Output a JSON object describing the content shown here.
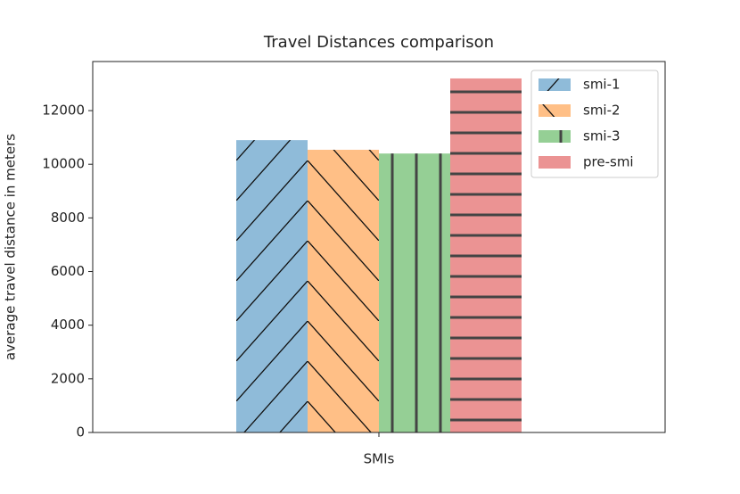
{
  "chart_data": {
    "type": "bar",
    "title": "Travel Distances comparison",
    "ylabel": "average travel distance in meters",
    "categories": [
      "SMIs"
    ],
    "series": [
      {
        "name": "smi-1",
        "color": "#8fbbd9",
        "hatch": "/",
        "values": [
          10900
        ]
      },
      {
        "name": "smi-2",
        "color": "#ffbf86",
        "hatch": "\\",
        "values": [
          10540
        ]
      },
      {
        "name": "smi-3",
        "color": "#95cf95",
        "hatch": "|",
        "values": [
          10400
        ]
      },
      {
        "name": "pre-smi",
        "color": "#eb9393",
        "hatch": "-",
        "values": [
          13200
        ]
      }
    ],
    "ylim": [
      0,
      13830
    ],
    "yticks": [
      0,
      2000,
      4000,
      6000,
      8000,
      10000,
      12000
    ],
    "legend": "upper right"
  }
}
